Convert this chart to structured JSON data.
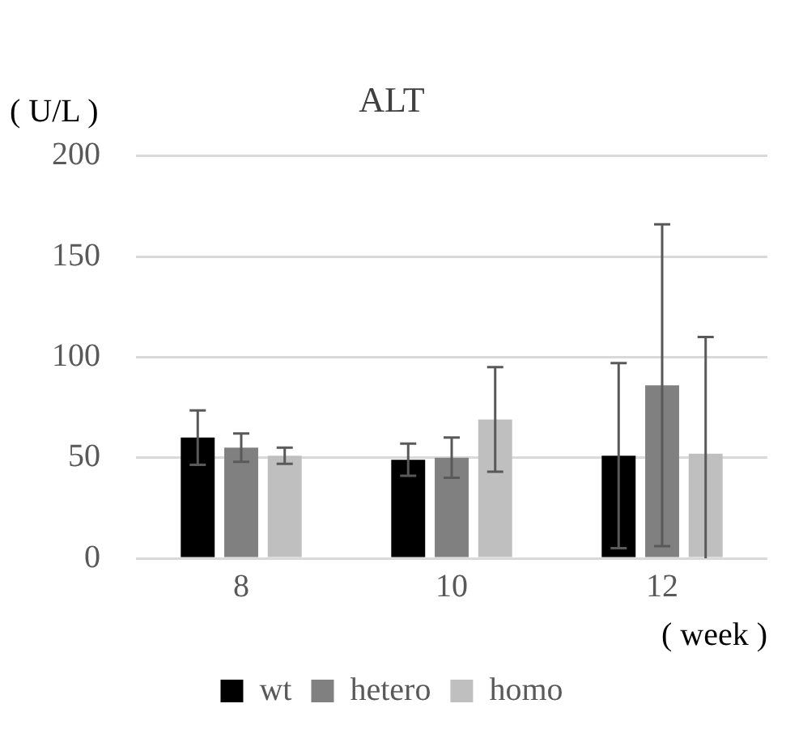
{
  "chart_data": {
    "type": "bar",
    "title": "ALT",
    "ylabel": "( U/L )",
    "xlabel": "( week )",
    "categories": [
      "8",
      "10",
      "12"
    ],
    "series": [
      {
        "name": "wt",
        "color": "#000000",
        "values": [
          60,
          49,
          51
        ],
        "errors": [
          13.5,
          8,
          46
        ]
      },
      {
        "name": "hetero",
        "color": "#808080",
        "values": [
          55,
          50,
          86
        ],
        "errors": [
          7,
          10,
          80
        ]
      },
      {
        "name": "homo",
        "color": "#bfbfbf",
        "values": [
          51,
          69,
          52
        ],
        "errors": [
          4,
          26,
          [
            0,
            110
          ]
        ]
      }
    ],
    "ylim": [
      0,
      200
    ],
    "yticks": [
      0,
      50,
      100,
      150,
      200
    ],
    "grid": "y",
    "legend": "bottom"
  }
}
